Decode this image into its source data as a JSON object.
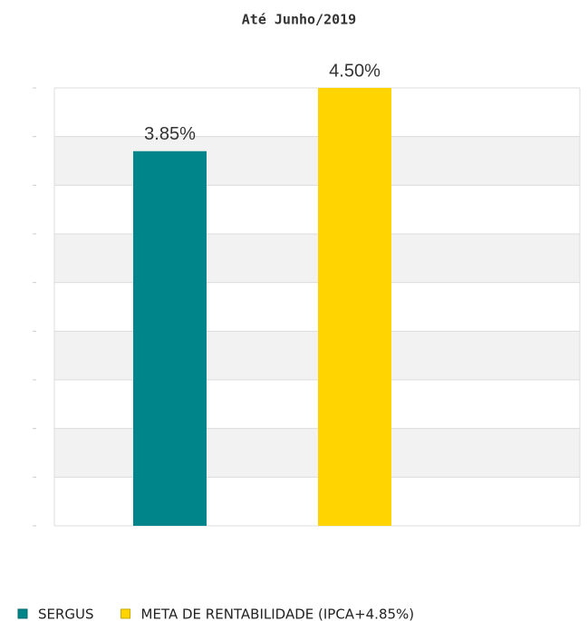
{
  "chart_data": {
    "type": "bar",
    "title": "Até Junho/2019",
    "series": [
      {
        "name": "SERGUS",
        "color": "#00868a",
        "values": [
          3.85
        ],
        "value_labels": [
          "3.85%"
        ]
      },
      {
        "name": "META DE RENTABILIDADE (IPCA+4.85%)",
        "color": "#ffd400",
        "values": [
          4.5
        ],
        "value_labels": [
          "4.50%"
        ]
      }
    ],
    "ylim": [
      0,
      4.5
    ],
    "yticks": [
      0,
      0.5,
      1,
      1.5,
      2,
      2.5,
      3,
      3.5,
      4,
      4.5
    ],
    "grid": true
  }
}
